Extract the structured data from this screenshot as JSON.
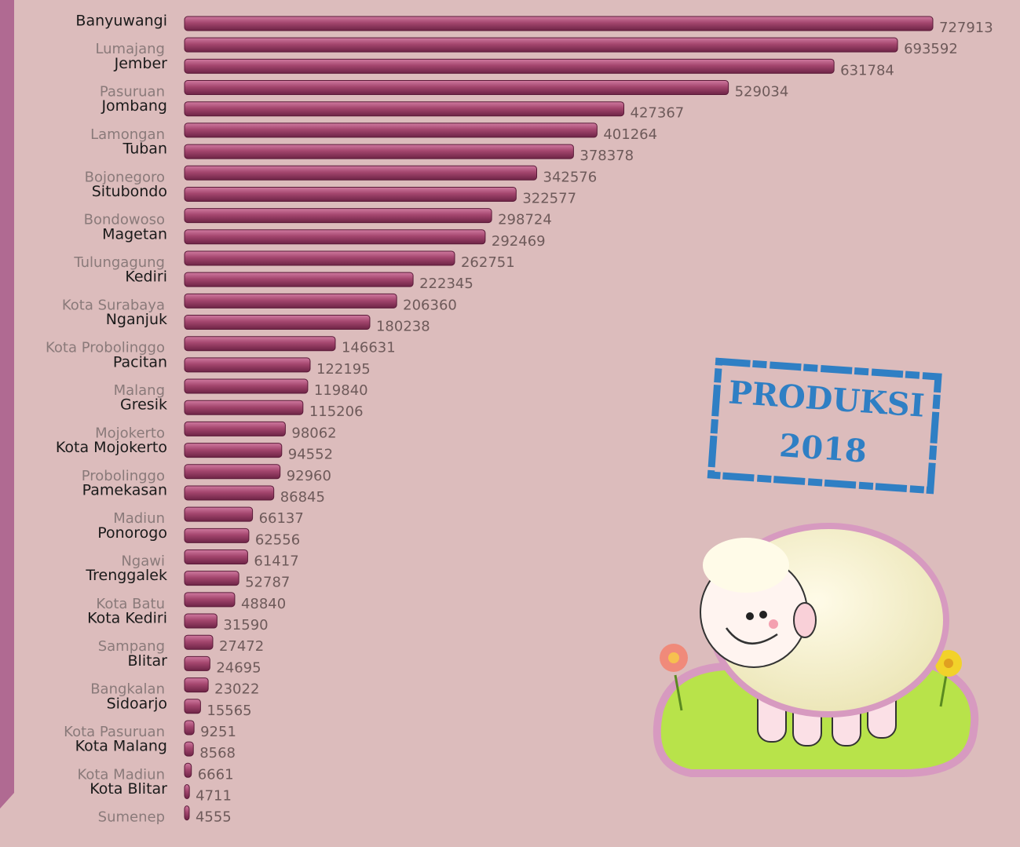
{
  "chart_data": {
    "type": "bar",
    "orientation": "horizontal",
    "color": "#a4466e",
    "categories": [
      "Banyuwangi",
      "Lumajang",
      "Jember",
      "Pasuruan",
      "Jombang",
      "Lamongan",
      "Tuban",
      "Bojonegoro",
      "Situbondo",
      "Bondowoso",
      "Magetan",
      "Tulungagung",
      "Kediri",
      "Kota Surabaya",
      "Nganjuk",
      "Kota Probolinggo",
      "Pacitan",
      "Malang",
      "Gresik",
      "Mojokerto",
      "Kota Mojokerto",
      "Probolinggo",
      "Pamekasan",
      "Madiun",
      "Ponorogo",
      "Ngawi",
      "Trenggalek",
      "Kota Batu",
      "Kota Kediri",
      "Sampang",
      "Blitar",
      "Bangkalan",
      "Sidoarjo",
      "Kota Pasuruan",
      "Kota Malang",
      "Kota Madiun",
      "Kota Blitar",
      "Sumenep"
    ],
    "values": [
      727913,
      693592,
      631784,
      529034,
      427367,
      401264,
      378378,
      342576,
      322577,
      298724,
      292469,
      262751,
      222345,
      206360,
      180238,
      146631,
      122195,
      119840,
      115206,
      98062,
      94552,
      92960,
      86845,
      66137,
      62556,
      61417,
      52787,
      48840,
      31590,
      27472,
      24695,
      23022,
      15565,
      9251,
      8568,
      6661,
      4711,
      4555
    ],
    "annotations": [
      "PRODUKSI",
      "2018"
    ]
  }
}
